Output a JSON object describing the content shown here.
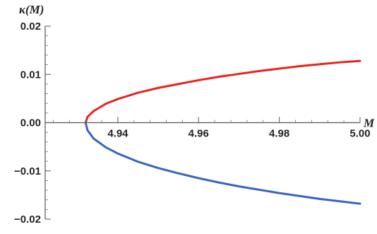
{
  "chart_data": {
    "type": "line",
    "title": "",
    "xlabel": "M",
    "ylabel": "κ(M)",
    "xlim": [
      4.922,
      5.0
    ],
    "ylim": [
      -0.02,
      0.02
    ],
    "x_ticks": [
      4.94,
      4.96,
      4.98,
      5.0
    ],
    "x_tick_labels": [
      "4.94",
      "4.96",
      "4.98",
      "5.00"
    ],
    "y_ticks": [
      0.02,
      0.01,
      0.0,
      -0.01,
      -0.02
    ],
    "y_tick_labels": [
      "0.02",
      "0.01",
      "0.00",
      "−0.01",
      "−0.02"
    ],
    "grid": false,
    "legend": "none",
    "series": [
      {
        "color": "#e8231f",
        "x": [
          4.932,
          4.9325,
          4.934,
          4.937,
          4.94,
          4.945,
          4.95,
          4.955,
          4.96,
          4.965,
          4.97,
          4.975,
          4.98,
          4.985,
          4.99,
          4.995,
          5.0
        ],
        "y": [
          0.0,
          0.0012,
          0.0024,
          0.0039,
          0.0049,
          0.0062,
          0.0072,
          0.008,
          0.0088,
          0.0095,
          0.0101,
          0.0107,
          0.0112,
          0.0117,
          0.0121,
          0.0125,
          0.0128
        ]
      },
      {
        "color": "#3a64bf",
        "x": [
          4.932,
          4.9325,
          4.934,
          4.937,
          4.94,
          4.945,
          4.95,
          4.955,
          4.96,
          4.965,
          4.97,
          4.975,
          4.98,
          4.985,
          4.99,
          4.995,
          5.0
        ],
        "y": [
          0.0,
          -0.0016,
          -0.0033,
          -0.0051,
          -0.0064,
          -0.0081,
          -0.0094,
          -0.0105,
          -0.0115,
          -0.0124,
          -0.0132,
          -0.0139,
          -0.0146,
          -0.0152,
          -0.0158,
          -0.0163,
          -0.0168
        ]
      }
    ]
  }
}
